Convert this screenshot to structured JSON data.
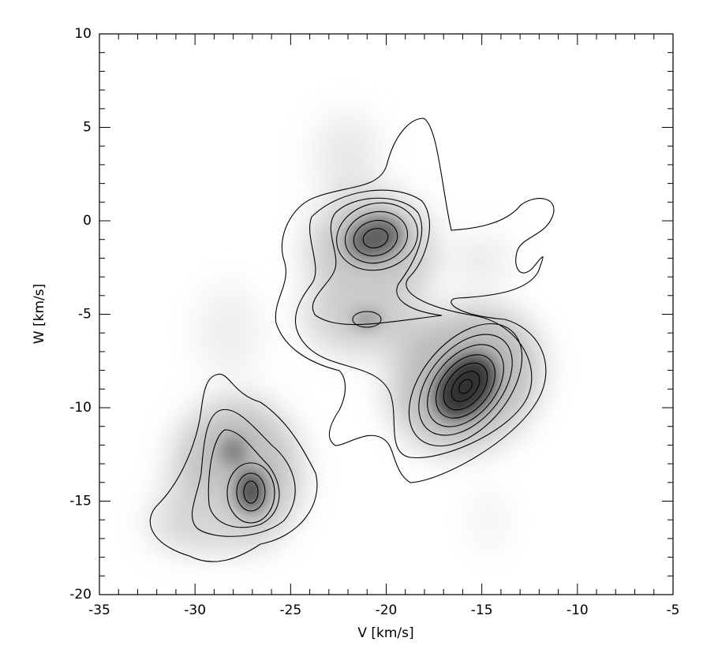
{
  "chart_data": {
    "type": "contour",
    "xlabel": "V  [km/s]",
    "ylabel": "W  [km/s]",
    "xlim": [
      -35,
      -5
    ],
    "ylim": [
      -20,
      10
    ],
    "xticks": [
      -35,
      -30,
      -25,
      -20,
      -15,
      -10,
      -5
    ],
    "yticks": [
      -20,
      -15,
      -10,
      -5,
      0,
      5,
      10
    ],
    "xminorticks": [
      -34,
      -33,
      -32,
      -31,
      -29,
      -28,
      -27,
      -26,
      -24,
      -23,
      -22,
      -21,
      -19,
      -18,
      -17,
      -16,
      -14,
      -13,
      -12,
      -11,
      -9,
      -8,
      -7,
      -6
    ],
    "yminorticks": [
      -19,
      -18,
      -17,
      -16,
      -14,
      -13,
      -12,
      -11,
      -9,
      -8,
      -7,
      -6,
      -4,
      -3,
      -2,
      -1,
      1,
      2,
      3,
      4,
      6,
      7,
      8,
      9
    ]
  }
}
